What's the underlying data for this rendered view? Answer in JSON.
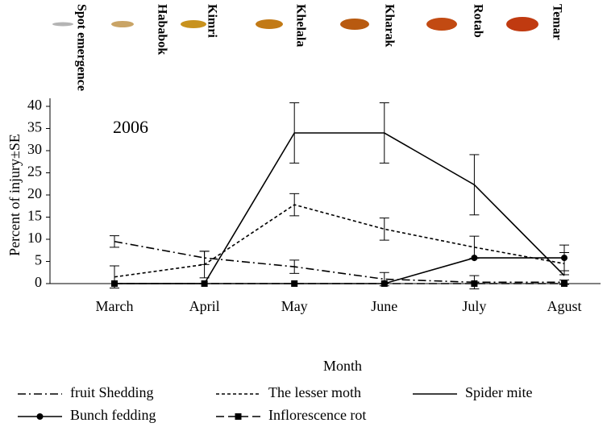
{
  "chart_data": {
    "type": "line",
    "annotation": "2006",
    "stages": [
      {
        "name": "Spot emergence",
        "color": "#b4b4b4"
      },
      {
        "name": "Hababok",
        "color": "#c9a466"
      },
      {
        "name": "Kimri",
        "color": "#c8921e"
      },
      {
        "name": "Khelala",
        "color": "#c27a16"
      },
      {
        "name": "Kharak",
        "color": "#b85a10"
      },
      {
        "name": "Rotab",
        "color": "#c24a12"
      },
      {
        "name": "Temar",
        "color": "#c03a10"
      }
    ],
    "x_label": "Month",
    "y_label": "Percent of injury±SE",
    "categories": [
      "March",
      "April",
      "May",
      "June",
      "July",
      "Agust"
    ],
    "ylim": [
      0,
      40
    ],
    "yticks": [
      0,
      5,
      10,
      15,
      20,
      25,
      30,
      35,
      40
    ],
    "series": [
      {
        "name": "fruit Shedding",
        "color": "#000000",
        "dash": "10 4 2 4",
        "marker": "none",
        "values": [
          9.5,
          5.8,
          3.8,
          1.0,
          0.3,
          0.3
        ],
        "errors": [
          1.3,
          1.5,
          1.5,
          1.5,
          1.5,
          0.5
        ]
      },
      {
        "name": "The lesser moth",
        "color": "#000000",
        "dash": "4 3",
        "marker": "none",
        "values": [
          1.5,
          4.3,
          17.8,
          12.3,
          8.2,
          4.5
        ],
        "errors": [
          2.5,
          3,
          2.5,
          2.5,
          2.5,
          2.5
        ]
      },
      {
        "name": "Spider mite",
        "color": "#000000",
        "dash": "none",
        "marker": "none",
        "values": [
          0,
          0,
          34,
          34,
          22.3,
          1.8
        ],
        "errors": [
          0,
          0,
          6.8,
          6.8,
          6.8,
          0
        ]
      },
      {
        "name": "Bunch fedding",
        "color": "#000000",
        "dash": "none",
        "marker": "circle",
        "values": [
          0,
          0,
          0,
          0,
          5.8,
          5.8
        ],
        "errors": [
          0,
          0,
          0,
          0,
          0,
          2.9
        ]
      },
      {
        "name": "Inflorescence rot",
        "color": "#000000",
        "dash": "10 5",
        "marker": "square",
        "values": [
          0,
          0,
          0,
          0,
          0,
          0
        ],
        "errors": [
          0,
          0,
          0,
          0,
          0,
          0
        ]
      }
    ]
  }
}
